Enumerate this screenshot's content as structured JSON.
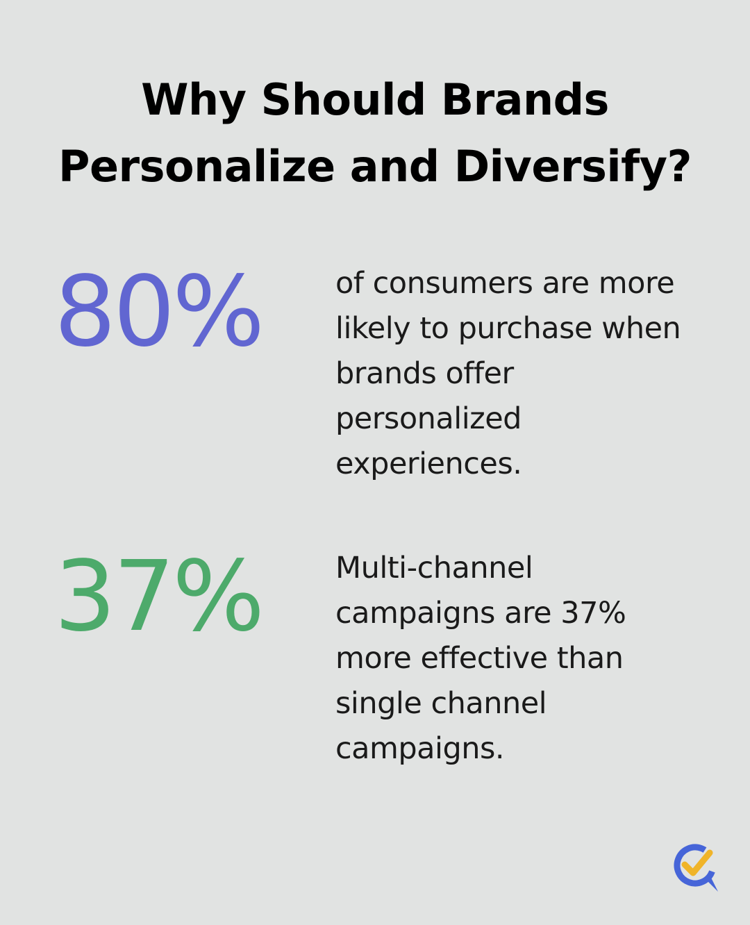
{
  "title": {
    "line1": "Why Should Brands",
    "line2": "Personalize and Diversify?"
  },
  "stats": [
    {
      "value": "80%",
      "color": "#6166d1",
      "lines": [
        "of consumers are more",
        "likely to purchase when",
        "brands offer",
        "personalized",
        "experiences."
      ]
    },
    {
      "value": "37%",
      "color": "#4daa6b",
      "lines": [
        "Multi-channel",
        "campaigns are 37%",
        "more effective than",
        "single channel",
        "campaigns."
      ]
    }
  ],
  "logo": {
    "icon": "check-chat-logo-icon",
    "ring_color": "#4665d8",
    "check_color": "#f0b429"
  }
}
